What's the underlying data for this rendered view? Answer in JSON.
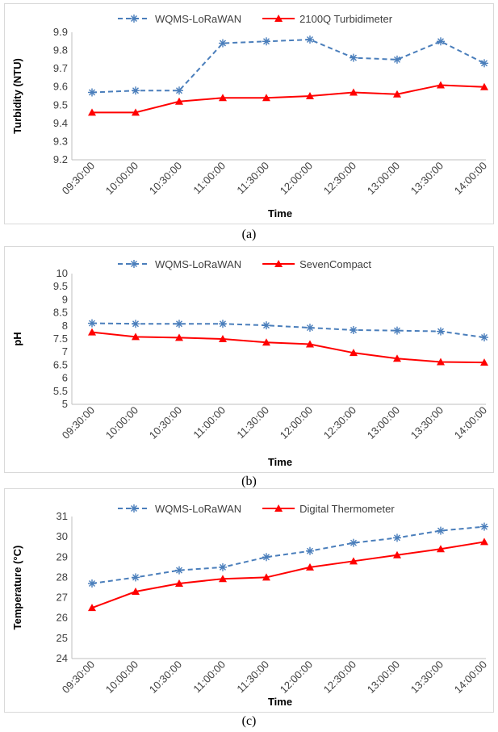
{
  "chart_data": [
    {
      "type": "line",
      "categories": [
        "09:30:00",
        "10:00:00",
        "10:30:00",
        "11:00:00",
        "11:30:00",
        "12:00:00",
        "12:30:00",
        "13:00:00",
        "13:30:00",
        "14:00:00"
      ],
      "series": [
        {
          "name": "WQMS-LoRaWAN",
          "values": [
            9.57,
            9.58,
            9.58,
            9.84,
            9.85,
            9.86,
            9.76,
            9.75,
            9.85,
            9.73
          ],
          "color": "#4a7ebb",
          "dash": true,
          "marker": "asterisk"
        },
        {
          "name": "2100Q Turbidimeter",
          "values": [
            9.46,
            9.46,
            9.52,
            9.54,
            9.54,
            9.55,
            9.57,
            9.56,
            9.61,
            9.6
          ],
          "color": "#ff0000",
          "dash": false,
          "marker": "triangle"
        }
      ],
      "ylabel": "Turbidity (NTU)",
      "xlabel": "Time",
      "ylim": [
        9.2,
        9.9
      ],
      "yticks": [
        "9.2",
        "9.3",
        "9.4",
        "9.5",
        "9.6",
        "9.7",
        "9.8",
        "9.9"
      ],
      "legend": "top",
      "grid": false,
      "caption": "(a)"
    },
    {
      "type": "line",
      "categories": [
        "09:30:00",
        "10:00:00",
        "10:30:00",
        "11:00:00",
        "11:30:00",
        "12:00:00",
        "12:30:00",
        "13:00:00",
        "13:30:00",
        "14:00:00"
      ],
      "series": [
        {
          "name": "WQMS-LoRaWAN",
          "values": [
            8.1,
            8.08,
            8.08,
            8.08,
            8.02,
            7.93,
            7.84,
            7.82,
            7.79,
            7.56
          ],
          "color": "#4a7ebb",
          "dash": true,
          "marker": "asterisk"
        },
        {
          "name": "SevenCompact",
          "values": [
            7.76,
            7.58,
            7.55,
            7.5,
            7.37,
            7.3,
            6.97,
            6.75,
            6.62,
            6.6
          ],
          "color": "#ff0000",
          "dash": false,
          "marker": "triangle"
        }
      ],
      "ylabel": "pH",
      "xlabel": "Time",
      "ylim": [
        5,
        10
      ],
      "yticks": [
        "5",
        "5.5",
        "6",
        "6.5",
        "7",
        "7.5",
        "8",
        "8.5",
        "9",
        "9.5",
        "10"
      ],
      "legend": "top",
      "grid": false,
      "caption": "(b)"
    },
    {
      "type": "line",
      "categories": [
        "09:30:00",
        "10:00:00",
        "10:30:00",
        "11:00:00",
        "11:30:00",
        "12:00:00",
        "12:30:00",
        "13:00:00",
        "13:30:00",
        "14:00:00"
      ],
      "series": [
        {
          "name": "WQMS-LoRaWAN",
          "values": [
            27.7,
            28.0,
            28.35,
            28.5,
            29.0,
            29.3,
            29.7,
            29.95,
            30.3,
            30.5
          ],
          "color": "#4a7ebb",
          "dash": true,
          "marker": "asterisk"
        },
        {
          "name": "Digital Thermometer",
          "values": [
            26.5,
            27.3,
            27.7,
            27.93,
            28.0,
            28.5,
            28.8,
            29.1,
            29.4,
            29.75
          ],
          "color": "#ff0000",
          "dash": false,
          "marker": "triangle"
        }
      ],
      "ylabel": "Temperature (°C)",
      "xlabel": "Time",
      "ylim": [
        24,
        31
      ],
      "yticks": [
        "24",
        "25",
        "26",
        "27",
        "28",
        "29",
        "30",
        "31"
      ],
      "legend": "top",
      "grid": false,
      "caption": "(c)"
    }
  ]
}
